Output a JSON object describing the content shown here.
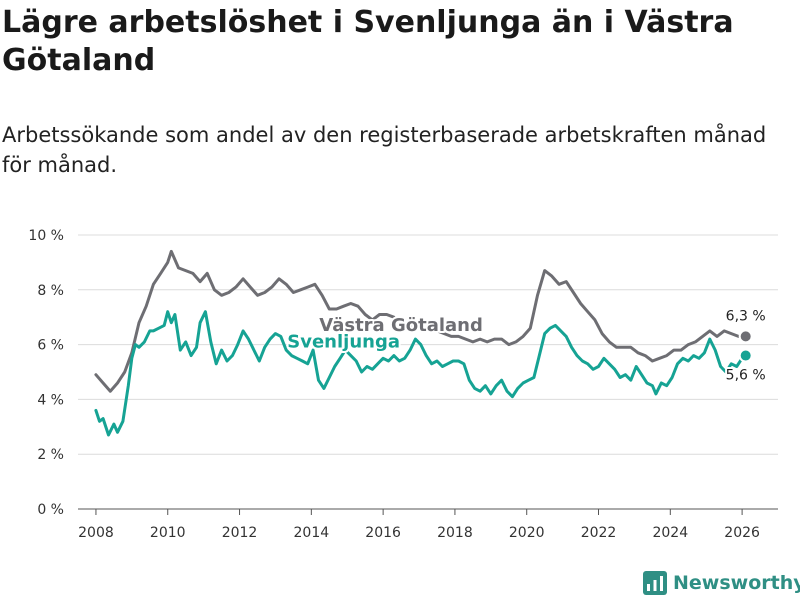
{
  "header": {
    "title": "Lägre arbetslöshet i Svenljunga än i Västra Götaland",
    "subtitle": "Arbetssökande som andel av den registerbaserade arbetskraften månad för månad."
  },
  "brand": {
    "name": "Newsworthy"
  },
  "chart_data": {
    "type": "line",
    "title": "Lägre arbetslöshet i Svenljunga än i Västra Götaland",
    "subtitle": "Arbetssökande som andel av den registerbaserade arbetskraften månad för månad.",
    "xlabel": "",
    "ylabel": "",
    "xlim": [
      2007.5,
      2027.0
    ],
    "ylim": [
      0,
      10
    ],
    "grid": true,
    "y_ticks": [
      0,
      2,
      4,
      6,
      8,
      10
    ],
    "y_tick_labels": [
      "0 %",
      "2 %",
      "4 %",
      "6 %",
      "8 %",
      "10 %"
    ],
    "x_ticks": [
      2008,
      2010,
      2012,
      2014,
      2016,
      2018,
      2020,
      2022,
      2024,
      2026
    ],
    "x_tick_labels": [
      "2008",
      "2010",
      "2012",
      "2014",
      "2016",
      "2018",
      "2020",
      "2022",
      "2024",
      "2026"
    ],
    "series": [
      {
        "name": "Västra Götaland",
        "color": "#6e6e73",
        "end_label": "6,3 %",
        "x": [
          2008.0,
          2008.2,
          2008.4,
          2008.6,
          2008.8,
          2009.0,
          2009.2,
          2009.4,
          2009.6,
          2009.8,
          2010.0,
          2010.1,
          2010.3,
          2010.5,
          2010.7,
          2010.9,
          2011.1,
          2011.3,
          2011.5,
          2011.7,
          2011.9,
          2012.1,
          2012.3,
          2012.5,
          2012.7,
          2012.9,
          2013.1,
          2013.3,
          2013.5,
          2013.7,
          2013.9,
          2014.1,
          2014.3,
          2014.5,
          2014.7,
          2014.9,
          2015.1,
          2015.3,
          2015.5,
          2015.7,
          2015.9,
          2016.1,
          2016.3,
          2016.5,
          2016.7,
          2016.9,
          2017.1,
          2017.3,
          2017.5,
          2017.7,
          2017.9,
          2018.1,
          2018.3,
          2018.5,
          2018.7,
          2018.9,
          2019.1,
          2019.3,
          2019.5,
          2019.7,
          2019.9,
          2020.1,
          2020.3,
          2020.5,
          2020.7,
          2020.9,
          2021.1,
          2021.3,
          2021.5,
          2021.7,
          2021.9,
          2022.1,
          2022.3,
          2022.5,
          2022.7,
          2022.9,
          2023.1,
          2023.3,
          2023.5,
          2023.7,
          2023.9,
          2024.1,
          2024.3,
          2024.5,
          2024.7,
          2024.9,
          2025.1,
          2025.3,
          2025.5,
          2025.7,
          2025.9,
          2026.1
        ],
        "values": [
          4.9,
          4.6,
          4.3,
          4.6,
          5.0,
          5.7,
          6.8,
          7.4,
          8.2,
          8.6,
          9.0,
          9.4,
          8.8,
          8.7,
          8.6,
          8.3,
          8.6,
          8.0,
          7.8,
          7.9,
          8.1,
          8.4,
          8.1,
          7.8,
          7.9,
          8.1,
          8.4,
          8.2,
          7.9,
          8.0,
          8.1,
          8.2,
          7.8,
          7.3,
          7.3,
          7.4,
          7.5,
          7.4,
          7.1,
          6.9,
          7.1,
          7.1,
          7.0,
          6.6,
          6.7,
          6.7,
          6.9,
          6.7,
          6.5,
          6.4,
          6.3,
          6.3,
          6.2,
          6.1,
          6.2,
          6.1,
          6.2,
          6.2,
          6.0,
          6.1,
          6.3,
          6.6,
          7.8,
          8.7,
          8.5,
          8.2,
          8.3,
          7.9,
          7.5,
          7.2,
          6.9,
          6.4,
          6.1,
          5.9,
          5.9,
          5.9,
          5.7,
          5.6,
          5.4,
          5.5,
          5.6,
          5.8,
          5.8,
          6.0,
          6.1,
          6.3,
          6.5,
          6.3,
          6.5,
          6.4,
          6.3,
          6.3
        ]
      },
      {
        "name": "Svenljunga",
        "color": "#16a394",
        "end_label": "5,6 %",
        "x": [
          2008.0,
          2008.1,
          2008.2,
          2008.35,
          2008.5,
          2008.6,
          2008.75,
          2008.9,
          2009.0,
          2009.1,
          2009.2,
          2009.35,
          2009.5,
          2009.6,
          2009.75,
          2009.9,
          2010.0,
          2010.1,
          2010.2,
          2010.35,
          2010.5,
          2010.65,
          2010.8,
          2010.9,
          2011.05,
          2011.2,
          2011.35,
          2011.5,
          2011.65,
          2011.8,
          2011.95,
          2012.1,
          2012.25,
          2012.4,
          2012.55,
          2012.7,
          2012.85,
          2013.0,
          2013.15,
          2013.3,
          2013.45,
          2013.6,
          2013.75,
          2013.9,
          2014.05,
          2014.2,
          2014.35,
          2014.5,
          2014.65,
          2014.8,
          2014.95,
          2015.1,
          2015.25,
          2015.4,
          2015.55,
          2015.7,
          2015.85,
          2016.0,
          2016.15,
          2016.3,
          2016.45,
          2016.6,
          2016.75,
          2016.9,
          2017.05,
          2017.2,
          2017.35,
          2017.5,
          2017.65,
          2017.8,
          2017.95,
          2018.1,
          2018.25,
          2018.4,
          2018.55,
          2018.7,
          2018.85,
          2019.0,
          2019.15,
          2019.3,
          2019.45,
          2019.6,
          2019.75,
          2019.9,
          2020.05,
          2020.2,
          2020.35,
          2020.5,
          2020.65,
          2020.8,
          2020.95,
          2021.1,
          2021.25,
          2021.4,
          2021.55,
          2021.7,
          2021.85,
          2022.0,
          2022.15,
          2022.3,
          2022.45,
          2022.6,
          2022.75,
          2022.9,
          2023.05,
          2023.2,
          2023.35,
          2023.5,
          2023.6,
          2023.75,
          2023.9,
          2024.05,
          2024.2,
          2024.35,
          2024.5,
          2024.65,
          2024.8,
          2024.95,
          2025.1,
          2025.25,
          2025.4,
          2025.55,
          2025.7,
          2025.85,
          2026.0,
          2026.1
        ],
        "values": [
          3.6,
          3.2,
          3.3,
          2.7,
          3.1,
          2.8,
          3.2,
          4.5,
          5.5,
          6.0,
          5.9,
          6.1,
          6.5,
          6.5,
          6.6,
          6.7,
          7.2,
          6.8,
          7.1,
          5.8,
          6.1,
          5.6,
          5.9,
          6.8,
          7.2,
          6.1,
          5.3,
          5.8,
          5.4,
          5.6,
          6.0,
          6.5,
          6.2,
          5.8,
          5.4,
          5.9,
          6.2,
          6.4,
          6.3,
          5.8,
          5.6,
          5.5,
          5.4,
          5.3,
          5.8,
          4.7,
          4.4,
          4.8,
          5.2,
          5.5,
          5.8,
          5.6,
          5.4,
          5.0,
          5.2,
          5.1,
          5.3,
          5.5,
          5.4,
          5.6,
          5.4,
          5.5,
          5.8,
          6.2,
          6.0,
          5.6,
          5.3,
          5.4,
          5.2,
          5.3,
          5.4,
          5.4,
          5.3,
          4.7,
          4.4,
          4.3,
          4.5,
          4.2,
          4.5,
          4.7,
          4.3,
          4.1,
          4.4,
          4.6,
          4.7,
          4.8,
          5.6,
          6.4,
          6.6,
          6.7,
          6.5,
          6.3,
          5.9,
          5.6,
          5.4,
          5.3,
          5.1,
          5.2,
          5.5,
          5.3,
          5.1,
          4.8,
          4.9,
          4.7,
          5.2,
          4.9,
          4.6,
          4.5,
          4.2,
          4.6,
          4.5,
          4.8,
          5.3,
          5.5,
          5.4,
          5.6,
          5.5,
          5.7,
          6.2,
          5.8,
          5.2,
          5.0,
          5.3,
          5.2,
          5.5,
          5.6
        ]
      }
    ]
  }
}
